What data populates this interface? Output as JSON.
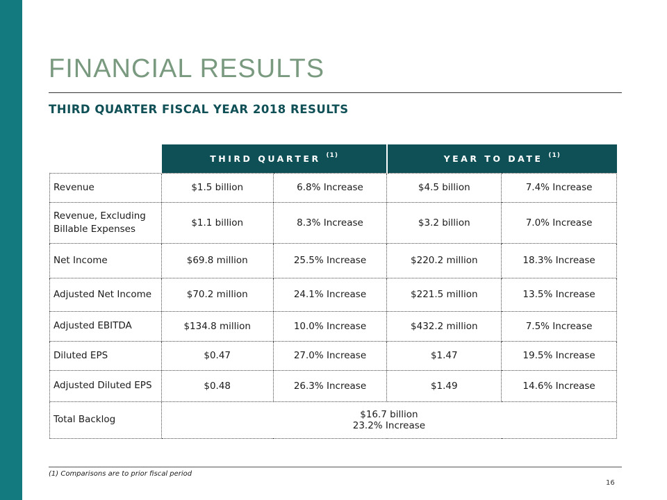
{
  "colors": {
    "side_bar": "#137a7f",
    "title": "#7a9a80",
    "header": "#0f4f56"
  },
  "title": "FINANCIAL RESULTS",
  "subtitle": "THIRD QUARTER FISCAL YEAR 2018 RESULTS",
  "table": {
    "headers": [
      {
        "label": "THIRD QUARTER",
        "note": "(1)"
      },
      {
        "label": "YEAR TO DATE",
        "note": "(1)"
      }
    ],
    "rows": [
      {
        "label": "Revenue",
        "q_value": "$1.5 billion",
        "q_change": "6.8% Increase",
        "ytd_value": "$4.5 billion",
        "ytd_change": "7.4% Increase"
      },
      {
        "label": "Revenue, Excluding Billable Expenses",
        "q_value": "$1.1 billion",
        "q_change": "8.3% Increase",
        "ytd_value": "$3.2 billion",
        "ytd_change": "7.0% Increase"
      },
      {
        "label": "Net Income",
        "q_value": "$69.8 million",
        "q_change": "25.5% Increase",
        "ytd_value": "$220.2 million",
        "ytd_change": "18.3% Increase"
      },
      {
        "label": "Adjusted Net Income",
        "q_value": "$70.2 million",
        "q_change": "24.1% Increase",
        "ytd_value": "$221.5 million",
        "ytd_change": "13.5% Increase"
      },
      {
        "label": "Adjusted EBITDA",
        "q_value": "$134.8 million",
        "q_change": "10.0% Increase",
        "ytd_value": "$432.2 million",
        "ytd_change": "7.5% Increase"
      },
      {
        "label": "Diluted EPS",
        "q_value": "$0.47",
        "q_change": "27.0% Increase",
        "ytd_value": "$1.47",
        "ytd_change": "19.5% Increase"
      },
      {
        "label": "Adjusted Diluted EPS",
        "q_value": "$0.48",
        "q_change": "26.3% Increase",
        "ytd_value": "$1.49",
        "ytd_change": "14.6% Increase"
      }
    ],
    "backlog": {
      "label": "Total Backlog",
      "value": "$16.7 billion",
      "change": "23.2% Increase"
    }
  },
  "footnote": "(1) Comparisons are to prior fiscal period",
  "page_number": "16"
}
